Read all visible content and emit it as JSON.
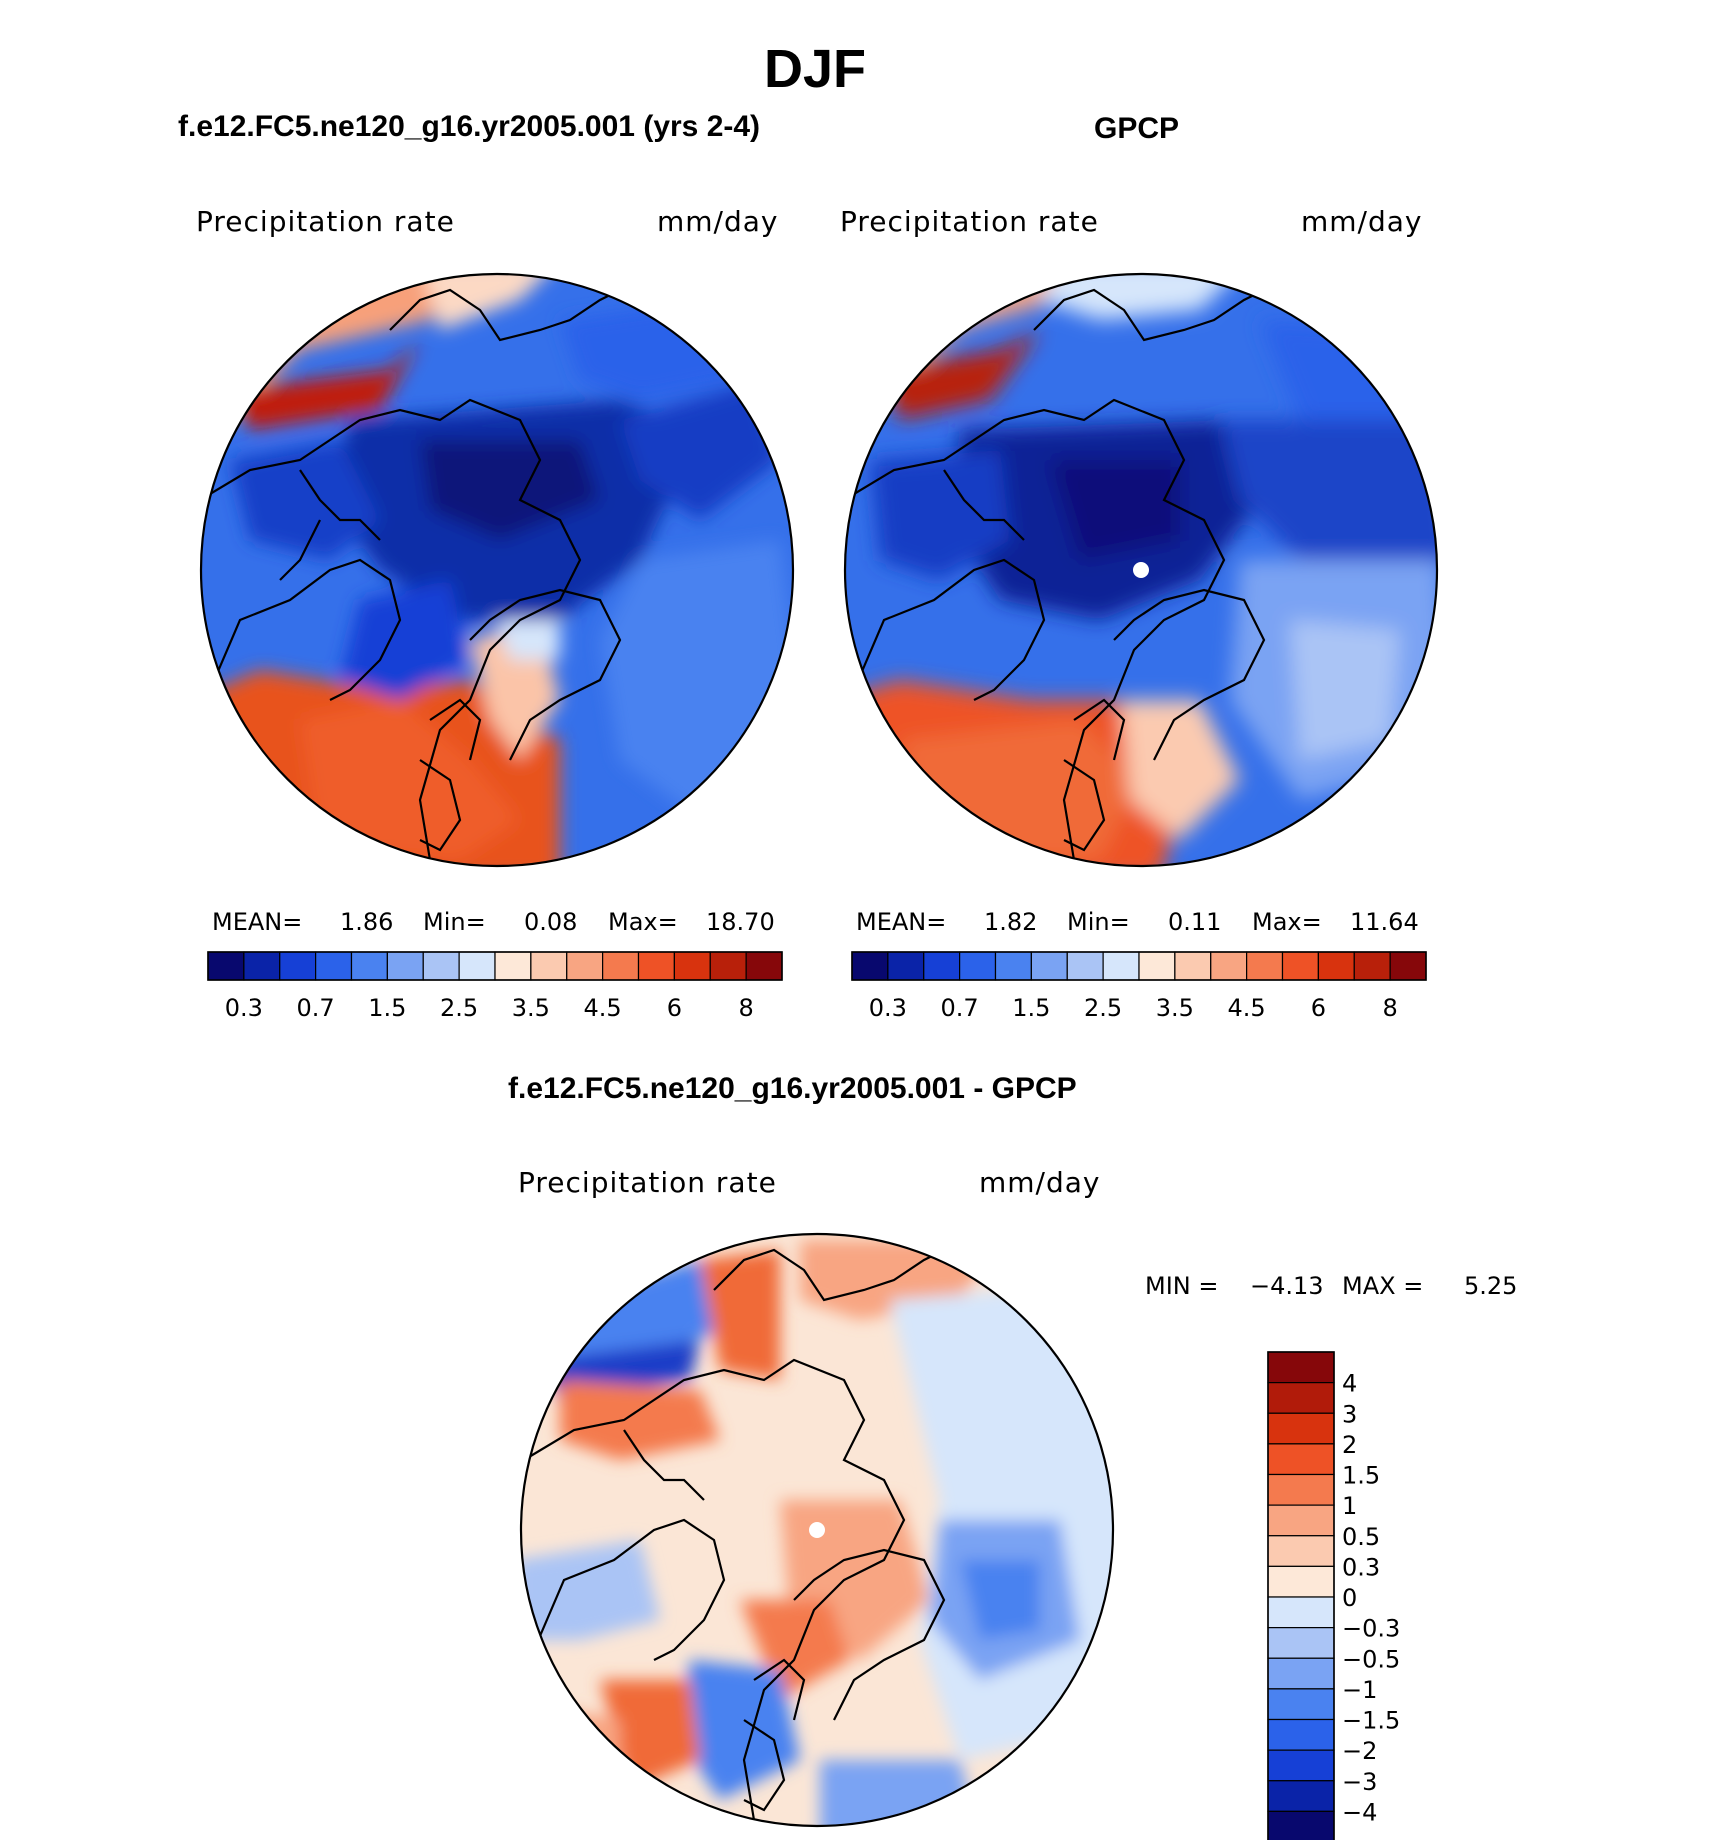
{
  "figure": {
    "title": "DJF"
  },
  "panels": [
    {
      "title": "f.e12.FC5.ne120_g16.yr2005.001 (yrs 2-4)",
      "variable": "Precipitation  rate",
      "units": "mm/day",
      "stats": {
        "mean_label": "MEAN=",
        "mean": "1.86",
        "min_label": "Min=",
        "min": "0.08",
        "max_label": "Max=",
        "max": "18.70"
      }
    },
    {
      "title": "GPCP",
      "variable": "Precipitation  rate",
      "units": "mm/day",
      "stats": {
        "mean_label": "MEAN=",
        "mean": "1.82",
        "min_label": "Min=",
        "min": "0.11",
        "max_label": "Max=",
        "max": "11.64"
      }
    },
    {
      "title": "f.e12.FC5.ne120_g16.yr2005.001 - GPCP",
      "variable": "Precipitation  rate",
      "units": "mm/day",
      "stats": {
        "min_label": "MIN =",
        "min": "−4.13",
        "max_label": "MAX =",
        "max": "5.25"
      }
    }
  ],
  "colorbars": {
    "abs": {
      "colors": [
        "#08086e",
        "#0a23a8",
        "#1640d6",
        "#2b62ea",
        "#4a82f0",
        "#7aa3f3",
        "#aac4f5",
        "#d6e6fb",
        "#fde8d8",
        "#fbcab0",
        "#f8a582",
        "#f47a4e",
        "#ee5226",
        "#d8330e",
        "#b8200a",
        "#86070a"
      ],
      "tick_labels": [
        "0.3",
        "0.7",
        "1.5",
        "2.5",
        "3.5",
        "4.5",
        "6",
        "8"
      ]
    },
    "diff": {
      "colors": [
        "#86070a",
        "#b11b0a",
        "#d8330e",
        "#ee5226",
        "#f47a4e",
        "#f8a582",
        "#fbcab0",
        "#fde8d8",
        "#d6e6fb",
        "#aac4f5",
        "#7aa3f3",
        "#4a82f0",
        "#2b62ea",
        "#1640d6",
        "#0a23a8",
        "#08086e"
      ],
      "tick_labels": [
        "4",
        "3",
        "2",
        "1.5",
        "1",
        "0.5",
        "0.3",
        "0",
        "−0.3",
        "−0.5",
        "−1",
        "−1.5",
        "−2",
        "−3",
        "−4"
      ]
    }
  }
}
